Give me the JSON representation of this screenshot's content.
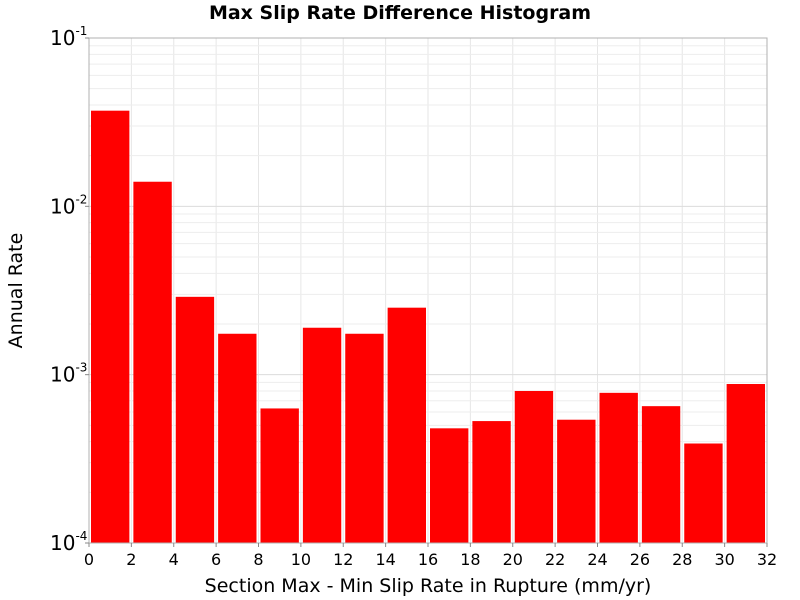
{
  "chart_data": {
    "type": "bar",
    "title": "Max Slip Rate Difference Histogram",
    "xlabel": "Section Max - Min Slip Rate in Rupture (mm/yr)",
    "ylabel": "Annual Rate",
    "y_scale": "log",
    "ylim": [
      0.0001,
      0.1
    ],
    "xlim": [
      0,
      32
    ],
    "bin_width": 2,
    "grid": true,
    "bar_color": "#ff0000",
    "x_ticks": [
      "0",
      "2",
      "4",
      "6",
      "8",
      "10",
      "12",
      "14",
      "16",
      "18",
      "20",
      "22",
      "24",
      "26",
      "28",
      "30",
      "32"
    ],
    "y_ticks": [
      {
        "base": "10",
        "exp": "-1",
        "value": 0.1
      },
      {
        "base": "10",
        "exp": "-2",
        "value": 0.01
      },
      {
        "base": "10",
        "exp": "-3",
        "value": 0.001
      },
      {
        "base": "10",
        "exp": "-4",
        "value": 0.0001
      }
    ],
    "bins": [
      {
        "x_start": 0,
        "value": 0.037
      },
      {
        "x_start": 2,
        "value": 0.014
      },
      {
        "x_start": 4,
        "value": 0.0029
      },
      {
        "x_start": 6,
        "value": 0.00175
      },
      {
        "x_start": 8,
        "value": 0.00063
      },
      {
        "x_start": 10,
        "value": 0.0019
      },
      {
        "x_start": 12,
        "value": 0.00175
      },
      {
        "x_start": 14,
        "value": 0.0025
      },
      {
        "x_start": 16,
        "value": 0.00048
      },
      {
        "x_start": 18,
        "value": 0.00053
      },
      {
        "x_start": 20,
        "value": 0.0008
      },
      {
        "x_start": 22,
        "value": 0.00054
      },
      {
        "x_start": 24,
        "value": 0.00078
      },
      {
        "x_start": 26,
        "value": 0.00065
      },
      {
        "x_start": 28,
        "value": 0.00039
      },
      {
        "x_start": 30,
        "value": 0.00088
      }
    ]
  }
}
